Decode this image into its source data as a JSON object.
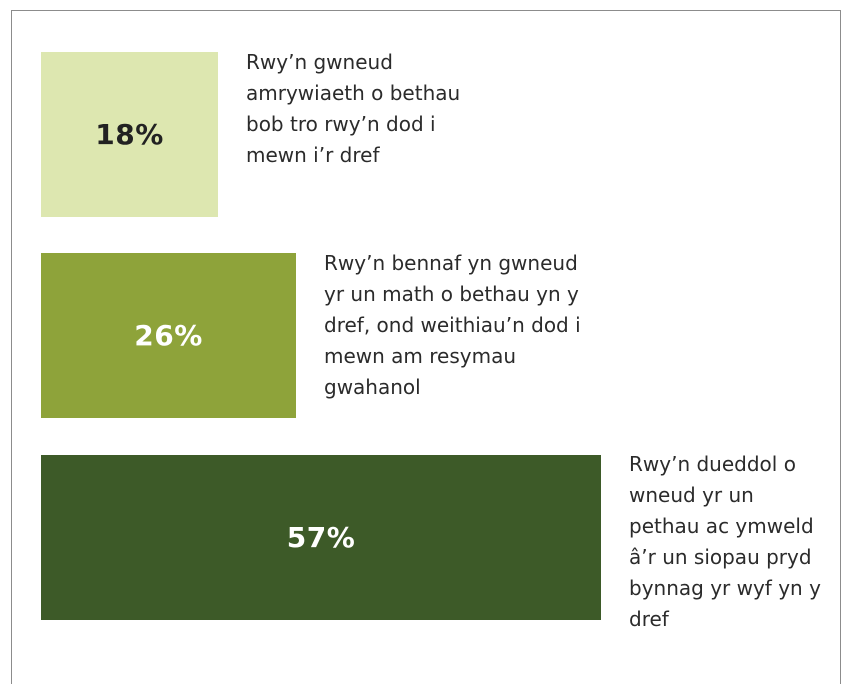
{
  "chart_data": {
    "type": "bar",
    "orientation": "horizontal",
    "categories": [
      "Rwy’n gwneud amrywiaeth o bethau bob tro rwy’n dod i mewn i’r dref",
      "Rwy’n bennaf yn gwneud yr un math o bethau  yn y dref, ond weithiau’n dod i mewn am resymau gwahanol",
      "Rwy’n dueddol o wneud yr un pethau ac ymweld â’r un siopau pryd bynnag yr wyf yn y dref"
    ],
    "values": [
      18,
      26,
      57
    ],
    "value_labels": [
      "18%",
      "26%",
      "57%"
    ],
    "unit": "%",
    "colors": [
      "#dde7b0",
      "#8ea33a",
      "#3d5a28"
    ],
    "label_colors": [
      "#222222",
      "#ffffff",
      "#ffffff"
    ],
    "label_lines": [
      [
        "Rwy’n gwneud",
        "amrywiaeth o bethau",
        "bob tro rwy’n dod i",
        "mewn i’r dref"
      ],
      [
        "Rwy’n bennaf yn gwneud",
        "yr un math o bethau  yn y",
        "dref, ond weithiau’n dod i",
        "mewn am resymau",
        "gwahanol"
      ],
      [
        "Rwy’n dueddol o",
        "wneud yr un",
        "pethau ac ymweld",
        "â’r un siopau pryd",
        "bynnag yr wyf yn y",
        "dref"
      ]
    ],
    "title": "",
    "xlabel": "",
    "ylabel": "",
    "grid": false,
    "legend": "none"
  }
}
